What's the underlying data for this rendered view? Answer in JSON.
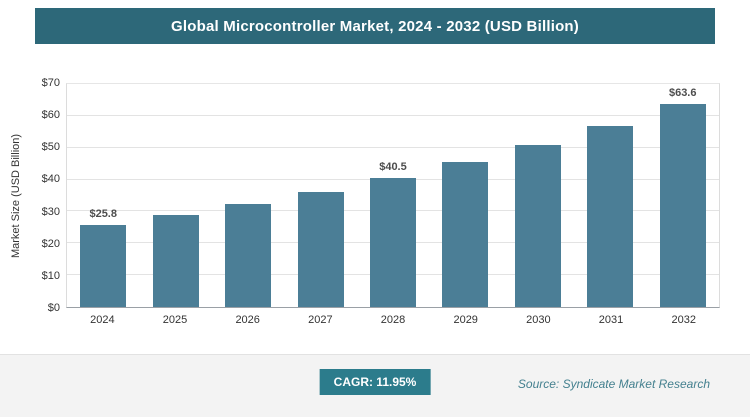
{
  "title": "Global Microcontroller Market, 2024 - 2032 (USD Billion)",
  "chart_data": {
    "type": "bar",
    "categories": [
      "2024",
      "2025",
      "2026",
      "2027",
      "2028",
      "2029",
      "2030",
      "2031",
      "2032"
    ],
    "values": [
      25.8,
      28.9,
      32.3,
      36.2,
      40.5,
      45.4,
      50.8,
      56.9,
      63.6
    ],
    "data_labels": [
      "$25.8",
      "",
      "",
      "",
      "$40.5",
      "",
      "",
      "",
      "$63.6"
    ],
    "title": "Global Microcontroller Market, 2024 - 2032 (USD Billion)",
    "xlabel": "",
    "ylabel": "Market Size (USD Billion)",
    "ylim": [
      0,
      70
    ],
    "ytick_step": 10,
    "ytick_prefix": "$",
    "grid": true,
    "legend": "none",
    "bar_color": "#4b7e96"
  },
  "footer": {
    "cagr_label": "CAGR: 11.95%",
    "source": "Source: Syndicate Market Research"
  },
  "colors": {
    "title_bar_bg": "#2d6879",
    "badge_bg": "#2c7c8c",
    "bar": "#4b7e96",
    "source_text": "#44808f"
  }
}
